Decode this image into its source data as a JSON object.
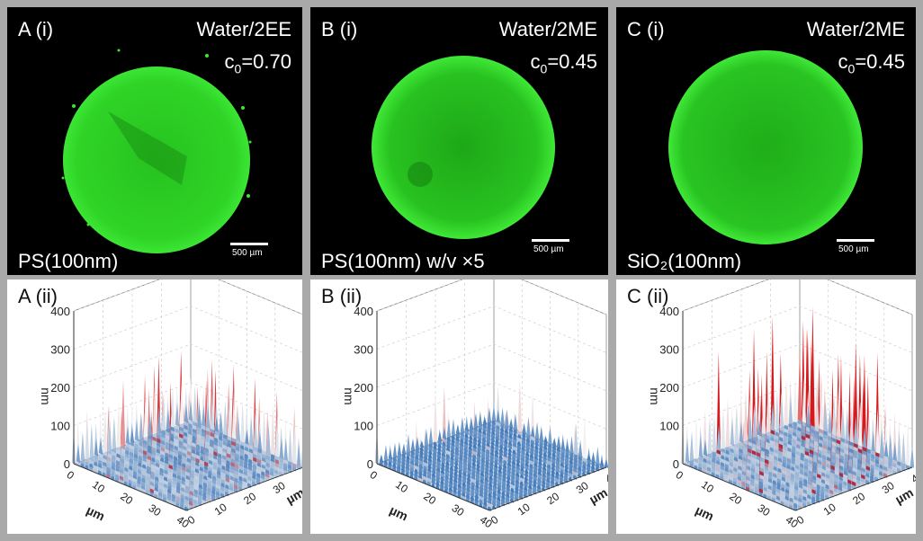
{
  "panels": [
    {
      "top": {
        "label": "A (i)",
        "solvent": "Water/2EE",
        "c0_prefix": "c",
        "c0_sub": "0",
        "c0_value": "=0.70",
        "sample": "PS(100nm)",
        "scale_label": "500 µm"
      },
      "bottom": {
        "label": "A (ii)"
      }
    },
    {
      "top": {
        "label": "B (i)",
        "solvent": "Water/2ME",
        "c0_prefix": "c",
        "c0_sub": "0",
        "c0_value": "=0.45",
        "sample": "PS(100nm) w/v ×5",
        "scale_label": "500 µm"
      },
      "bottom": {
        "label": "B (ii)"
      }
    },
    {
      "top": {
        "label": "C (i)",
        "solvent": "Water/2ME",
        "c0_prefix": "c",
        "c0_sub": "0",
        "c0_value": "=0.45",
        "sample": "SiO₂(100nm)",
        "scale_label": "500 µm"
      },
      "bottom": {
        "label": "C (ii)"
      }
    }
  ],
  "colors": {
    "frame": "#a9a9a9",
    "fluorescence": "#33dd2a",
    "surface_low": "#2e6db4",
    "surface_high": "#d7191c"
  },
  "chart_data": [
    {
      "type": "surface3d",
      "panel": "A (ii)",
      "zlabel": "nm",
      "xlabel": "µm",
      "ylabel": "µm",
      "z_ticks": [
        "0",
        "100",
        "200",
        "300",
        "400"
      ],
      "x_ticks": [
        "0",
        "10",
        "20",
        "30",
        "40"
      ],
      "y_ticks": [
        "0",
        "10",
        "20",
        "30",
        "40"
      ],
      "zlim": [
        0,
        400
      ],
      "xlim": [
        0,
        40
      ],
      "ylim": [
        0,
        40
      ],
      "typical_height_nm": 100,
      "max_height_nm": 230
    },
    {
      "type": "surface3d",
      "panel": "B (ii)",
      "zlabel": "nm",
      "xlabel": "µm",
      "ylabel": "µm",
      "z_ticks": [
        "0",
        "100",
        "200",
        "300",
        "400"
      ],
      "x_ticks": [
        "0",
        "10",
        "20",
        "30",
        "40"
      ],
      "y_ticks": [
        "0",
        "10",
        "20",
        "30",
        "40"
      ],
      "zlim": [
        0,
        400
      ],
      "xlim": [
        0,
        40
      ],
      "ylim": [
        0,
        40
      ],
      "typical_height_nm": 40,
      "max_height_nm": 150
    },
    {
      "type": "surface3d",
      "panel": "C (ii)",
      "zlabel": "nm",
      "xlabel": "µm",
      "ylabel": "µm",
      "z_ticks": [
        "0",
        "100",
        "200",
        "300",
        "400"
      ],
      "x_ticks": [
        "0",
        "10",
        "20",
        "30",
        "40"
      ],
      "y_ticks": [
        "0",
        "10",
        "20",
        "30",
        "40"
      ],
      "zlim": [
        0,
        400
      ],
      "xlim": [
        0,
        40
      ],
      "ylim": [
        0,
        40
      ],
      "typical_height_nm": 110,
      "max_height_nm": 330
    }
  ]
}
